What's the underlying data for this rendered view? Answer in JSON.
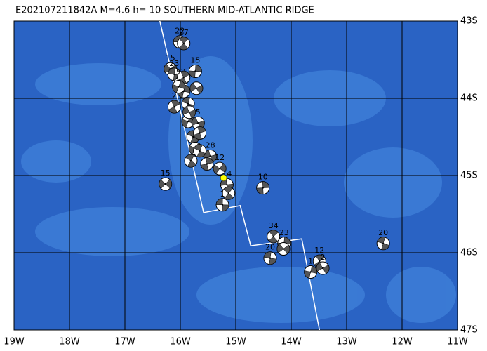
{
  "chart_data": {
    "type": "map",
    "title": "E202107211842A M=4.6 h= 10 SOUTHERN MID-ATLANTIC RIDGE",
    "xlim": [
      -19,
      -11
    ],
    "ylim": [
      -47,
      -43
    ],
    "xticks": [
      {
        "value": -19,
        "label": "19W"
      },
      {
        "value": -18,
        "label": "18W"
      },
      {
        "value": -17,
        "label": "17W"
      },
      {
        "value": -16,
        "label": "16W"
      },
      {
        "value": -15,
        "label": "15W"
      },
      {
        "value": -14,
        "label": "14W"
      },
      {
        "value": -13,
        "label": "13W"
      },
      {
        "value": -12,
        "label": "12W"
      },
      {
        "value": -11,
        "label": "11W"
      }
    ],
    "yticks": [
      {
        "value": -43,
        "label": "43S"
      },
      {
        "value": -44,
        "label": "44S"
      },
      {
        "value": -45,
        "label": "45S"
      },
      {
        "value": -46,
        "label": "46S"
      },
      {
        "value": -47,
        "label": "47S"
      }
    ],
    "ridge": {
      "lon": [
        -16.37,
        -15.58,
        -14.92,
        -14.73,
        -13.81,
        -13.49
      ],
      "lat": [
        -43.0,
        -45.48,
        -45.39,
        -45.91,
        -45.82,
        -47.0
      ]
    },
    "events": {
      "lon": [
        -16.01,
        -15.94,
        -15.73,
        -16.18,
        -16.11,
        -15.99,
        -15.94,
        -15.71,
        -15.86,
        -16.11,
        -15.86,
        -15.68,
        -15.77,
        -15.65,
        -15.73,
        -15.46,
        -15.81,
        -15.52,
        -15.29,
        -15.16,
        -15.13,
        -14.51,
        -16.27,
        -15.24,
        -14.32,
        -14.13,
        -14.14,
        -14.38,
        -13.49,
        -13.65,
        -13.43,
        -12.34,
        -15.94,
        -16.03,
        -15.84,
        -15.65
      ],
      "lat": [
        -43.27,
        -43.29,
        -43.65,
        -43.62,
        -43.69,
        -43.8,
        -43.91,
        -43.87,
        -44.07,
        -44.11,
        -44.3,
        -44.32,
        -44.5,
        -44.45,
        -44.65,
        -44.75,
        -44.81,
        -44.85,
        -44.91,
        -45.12,
        -45.23,
        -45.16,
        -45.11,
        -45.38,
        -45.79,
        -45.88,
        -45.95,
        -46.07,
        -46.11,
        -46.25,
        -46.2,
        -45.88,
        -43.73,
        -43.85,
        -44.18,
        -44.68
      ],
      "labels": [
        "22",
        "27",
        "15",
        "15",
        "23",
        "52",
        null,
        null,
        null,
        "2",
        null,
        "5",
        null,
        null,
        null,
        "28",
        null,
        null,
        "12",
        "14",
        null,
        "10",
        "15",
        "1",
        "34",
        "23",
        null,
        "20",
        "12",
        "1",
        "2",
        "20",
        null,
        null,
        null,
        null
      ]
    },
    "epicenter": {
      "lon": -15.22,
      "lat": -45.03
    }
  }
}
